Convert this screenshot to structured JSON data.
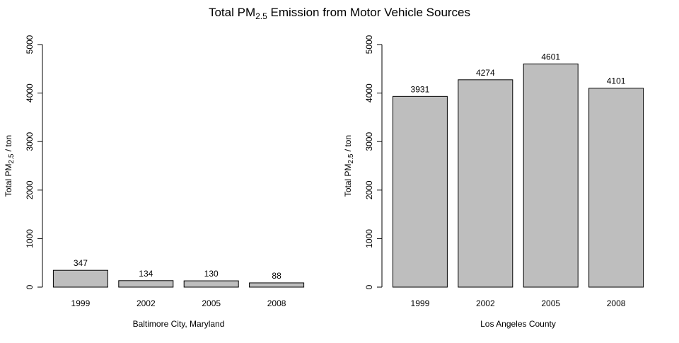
{
  "figure": {
    "title_main": "Total PM",
    "title_sub": "2.5",
    "title_rest": " Emission from Motor Vehicle Sources",
    "ylabel_main": "Total PM",
    "ylabel_sub": "2.5",
    "ylabel_rest": " / ton"
  },
  "chart_data": [
    {
      "type": "bar",
      "xlabel": "Baltimore City, Maryland",
      "categories": [
        "1999",
        "2002",
        "2005",
        "2008"
      ],
      "values": [
        347,
        134,
        130,
        88
      ],
      "data_labels": [
        "347",
        "134",
        "130",
        "88"
      ],
      "ylim": [
        0,
        5000
      ],
      "yticks": [
        0,
        1000,
        2000,
        3000,
        4000,
        5000
      ],
      "bar_color": "#bebebe",
      "grid": false
    },
    {
      "type": "bar",
      "xlabel": "Los Angeles County",
      "categories": [
        "1999",
        "2002",
        "2005",
        "2008"
      ],
      "values": [
        3931,
        4274,
        4601,
        4101
      ],
      "data_labels": [
        "3931",
        "4274",
        "4601",
        "4101"
      ],
      "ylim": [
        0,
        5000
      ],
      "yticks": [
        0,
        1000,
        2000,
        3000,
        4000,
        5000
      ],
      "bar_color": "#bebebe",
      "grid": false
    }
  ]
}
